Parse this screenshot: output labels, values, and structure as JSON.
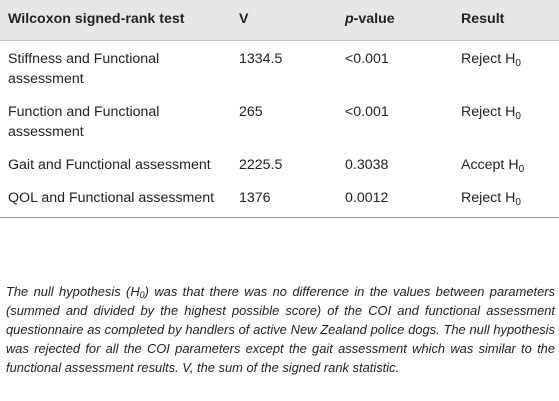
{
  "table": {
    "headers": {
      "test": "Wilcoxon signed-rank test",
      "v": "V",
      "p_prefix": "p",
      "p_suffix": "-value",
      "result": "Result"
    },
    "rows": [
      {
        "test": "Stiffness and Functional assessment",
        "v": "1334.5",
        "p": "<0.001",
        "result": "Reject H",
        "result_sub": "0"
      },
      {
        "test": "Function and Functional assessment",
        "v": "265",
        "p": "<0.001",
        "result": "Reject H",
        "result_sub": "0"
      },
      {
        "test": "Gait and Functional assessment",
        "v": "2225.5",
        "p": "0.3038",
        "result": "Accept H",
        "result_sub": "0"
      },
      {
        "test": "QOL and Functional assessment",
        "v": "1376",
        "p": "0.0012",
        "result": "Reject H",
        "result_sub": "0"
      }
    ]
  },
  "footnote": {
    "part1": "The null hypothesis (H",
    "sub": "0",
    "part2": ") was that there was no difference in the values between parameters (summed and divided by the highest possible score) of the COI and functional assessment questionnaire as completed by handlers of active New Zealand police dogs. The null hypothesis was rejected for all the COI parameters except the gait assessment which was similar to the functional assessment results. V, the sum of the signed rank statistic."
  }
}
